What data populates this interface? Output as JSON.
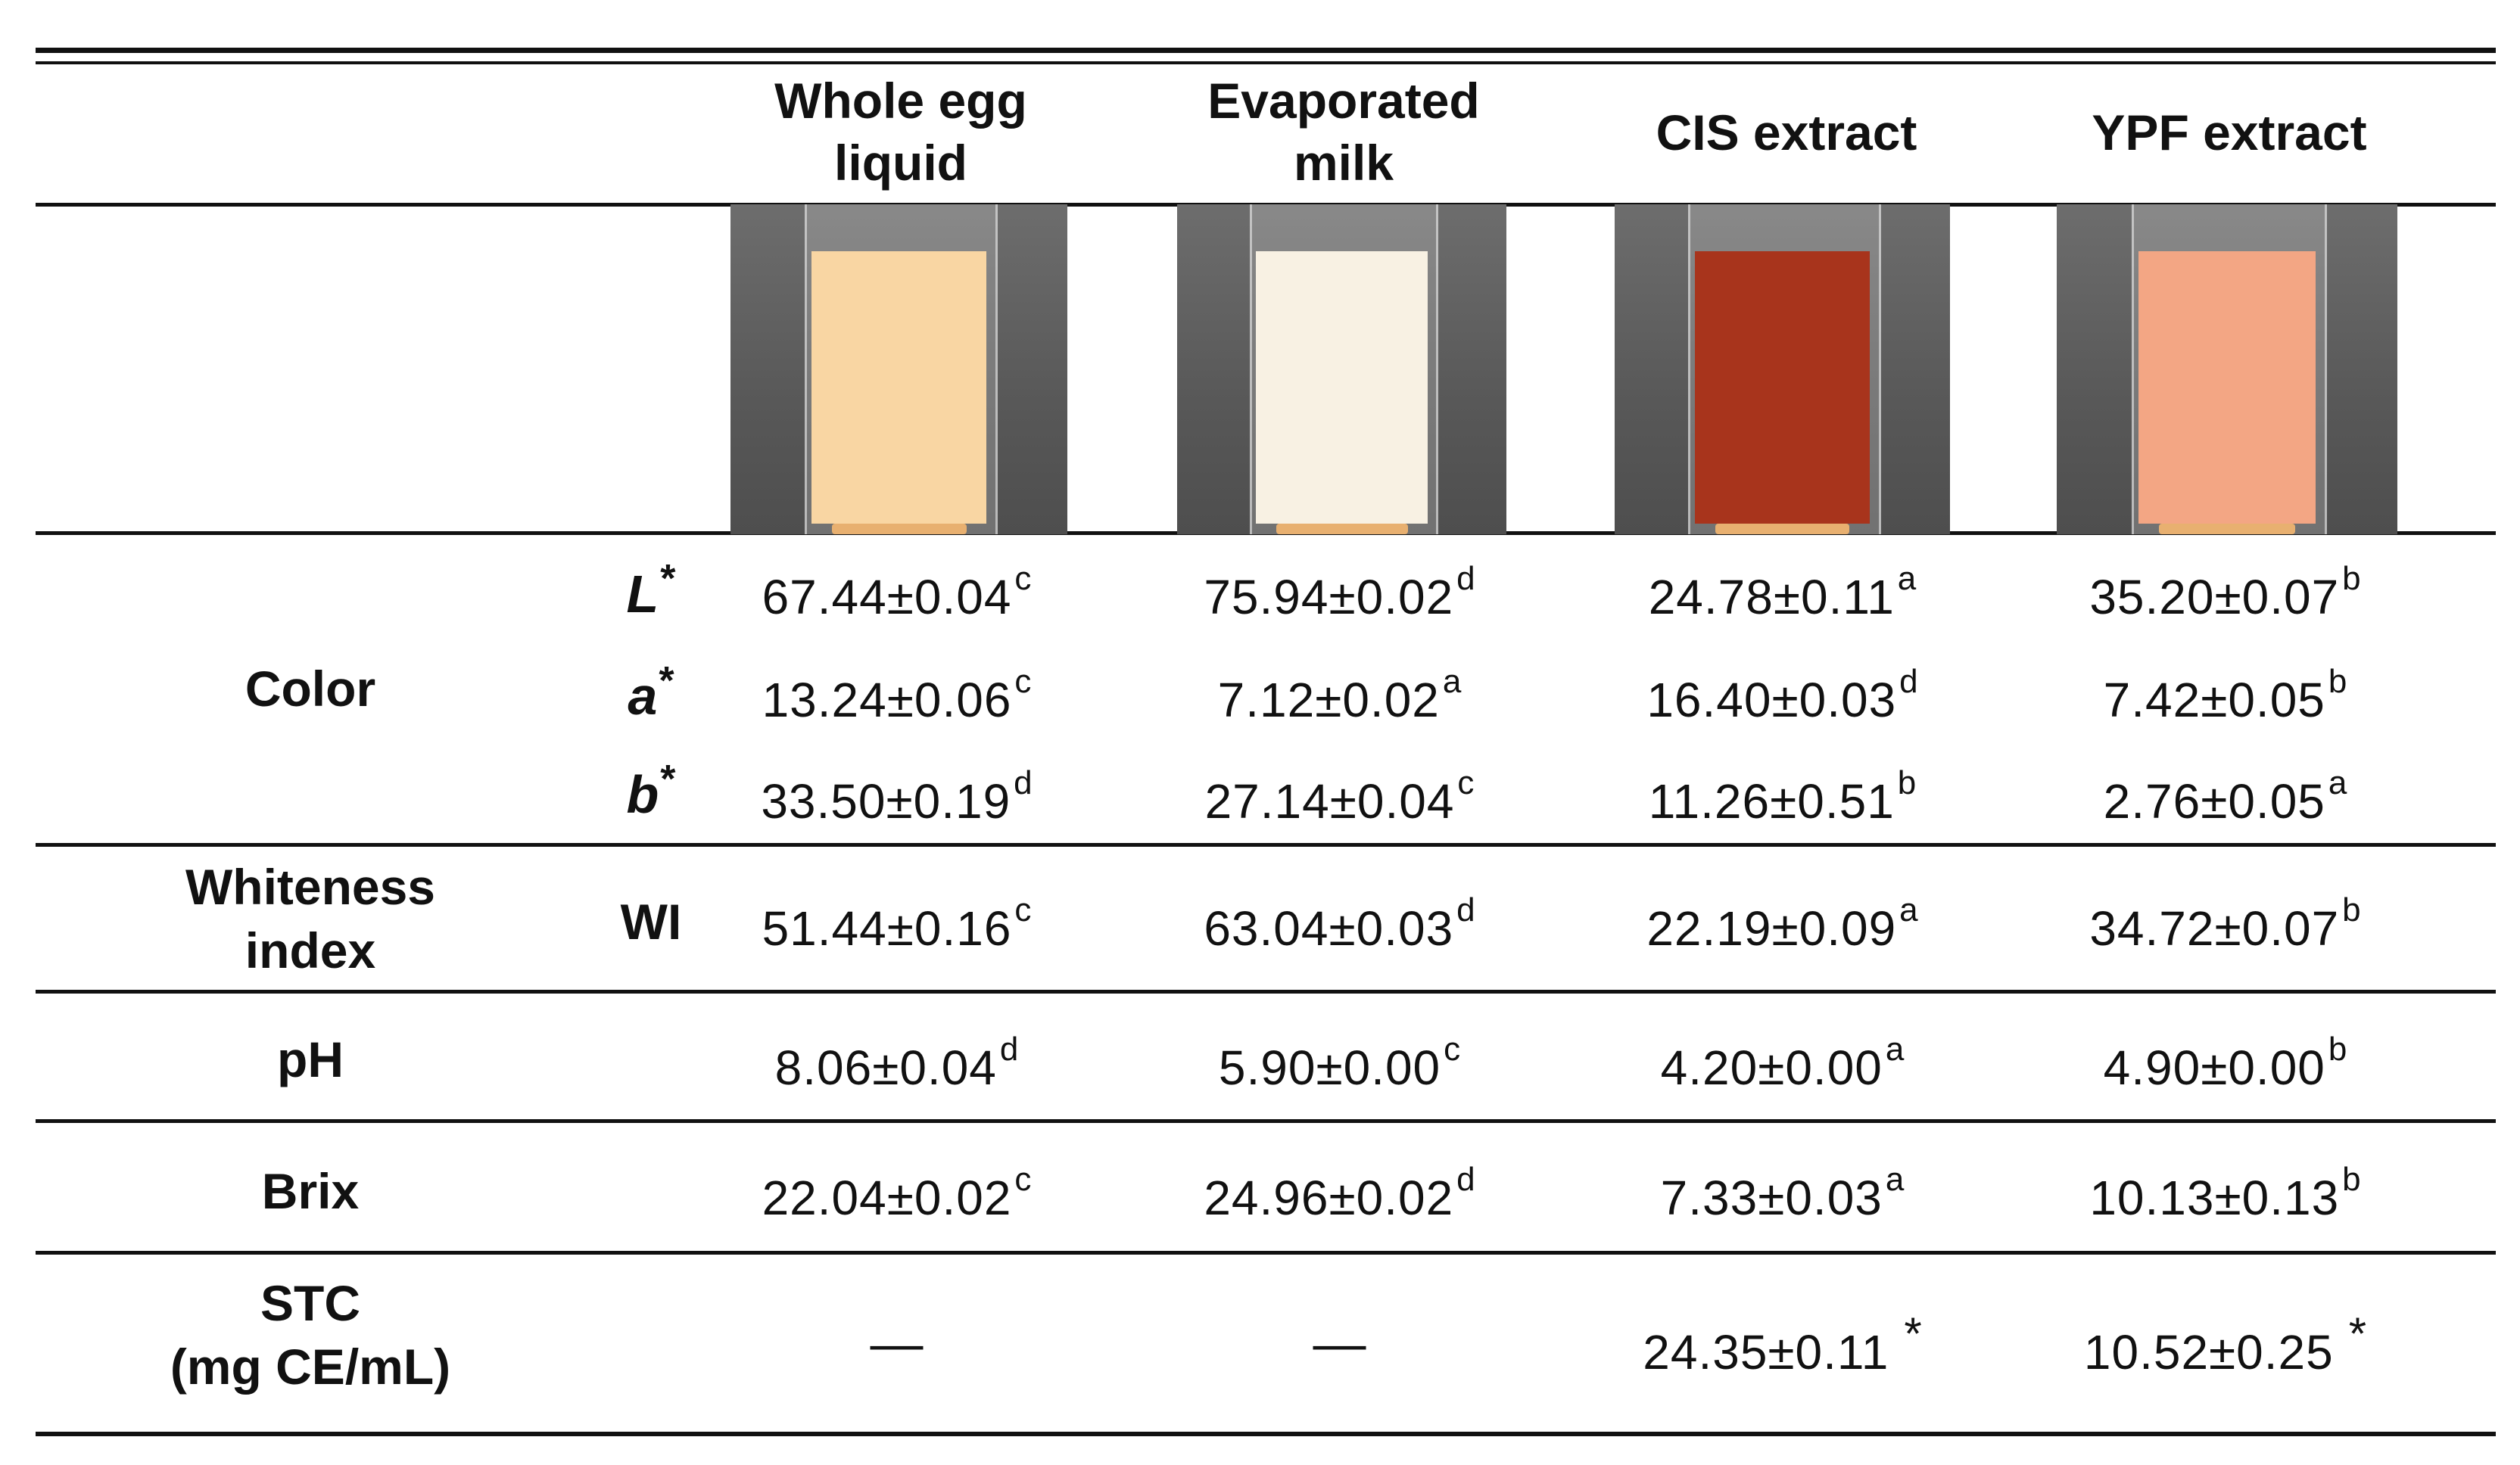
{
  "columns": [
    {
      "line1": "Whole egg",
      "line2": "liquid",
      "liquid_color": "#f9d6a3"
    },
    {
      "line1": "Evaporated",
      "line2": "milk",
      "liquid_color": "#f8f1e3"
    },
    {
      "line1": "CIS extract",
      "line2": "",
      "liquid_color": "#a8341c"
    },
    {
      "line1": "YPF extract",
      "line2": "",
      "liquid_color": "#f3a684"
    }
  ],
  "rows": {
    "color": {
      "label": "Color",
      "L": {
        "sym": "L",
        "star": "*",
        "values": [
          {
            "v": "67.44±0.04",
            "s": "c"
          },
          {
            "v": "75.94±0.02",
            "s": "d"
          },
          {
            "v": "24.78±0.11",
            "s": "a"
          },
          {
            "v": "35.20±0.07",
            "s": "b"
          }
        ]
      },
      "a": {
        "sym": "a",
        "star": "*",
        "values": [
          {
            "v": "13.24±0.06",
            "s": "c"
          },
          {
            "v": "7.12±0.02",
            "s": "a"
          },
          {
            "v": "16.40±0.03",
            "s": "d"
          },
          {
            "v": "7.42±0.05",
            "s": "b"
          }
        ]
      },
      "b": {
        "sym": "b",
        "star": "*",
        "values": [
          {
            "v": "33.50±0.19",
            "s": "d"
          },
          {
            "v": "27.14±0.04",
            "s": "c"
          },
          {
            "v": "11.26±0.51",
            "s": "b"
          },
          {
            "v": "2.76±0.05",
            "s": "a"
          }
        ]
      }
    },
    "whiteness": {
      "line1": "Whiteness",
      "line2": "index",
      "sym": "WI",
      "values": [
        {
          "v": "51.44±0.16",
          "s": "c"
        },
        {
          "v": "63.04±0.03",
          "s": "d"
        },
        {
          "v": "22.19±0.09",
          "s": "a"
        },
        {
          "v": "34.72±0.07",
          "s": "b"
        }
      ]
    },
    "ph": {
      "label": "pH",
      "values": [
        {
          "v": "8.06±0.04",
          "s": "d"
        },
        {
          "v": "5.90±0.00",
          "s": "c"
        },
        {
          "v": "4.20±0.00",
          "s": "a"
        },
        {
          "v": "4.90±0.00",
          "s": "b"
        }
      ]
    },
    "brix": {
      "label": "Brix",
      "values": [
        {
          "v": "22.04±0.02",
          "s": "c"
        },
        {
          "v": "24.96±0.02",
          "s": "d"
        },
        {
          "v": "7.33±0.03",
          "s": "a"
        },
        {
          "v": "10.13±0.13",
          "s": "b"
        }
      ]
    },
    "stc": {
      "line1": "STC",
      "line2": "(mg CE/mL)",
      "values": [
        {
          "v": "—",
          "s": ""
        },
        {
          "v": "—",
          "s": ""
        },
        {
          "v": "24.35±0.11",
          "s": "*"
        },
        {
          "v": "10.52±0.25",
          "s": "*"
        }
      ]
    }
  }
}
